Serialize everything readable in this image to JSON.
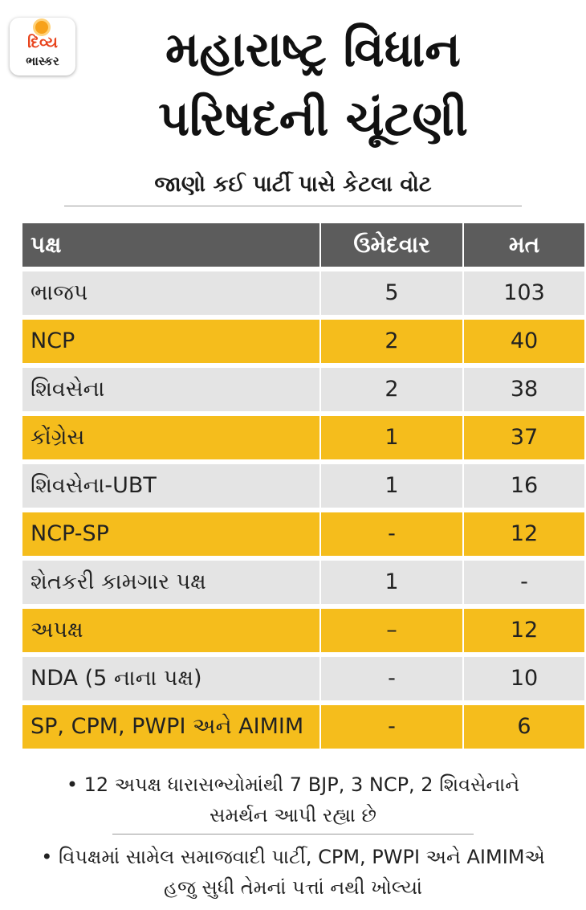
{
  "logo": {
    "line1": "દિવ્ય",
    "line2": "ભાસ્કર"
  },
  "header": {
    "title_line1": "મહારાષ્ટ્ર વિધાન",
    "title_line2": "પરિષદની ચૂંટણી",
    "subtitle": "જાણો કઈ પાર્ટી પાસે કેટલા વોટ"
  },
  "table": {
    "columns": [
      "પક્ષ",
      "ઉમેદવાર",
      "મત"
    ],
    "rows": [
      {
        "party": "ભાજપ",
        "candidates": "5",
        "votes": "103"
      },
      {
        "party": "NCP",
        "candidates": "2",
        "votes": "40"
      },
      {
        "party": "શિવસેના",
        "candidates": "2",
        "votes": "38"
      },
      {
        "party": "કોંગ્રેસ",
        "candidates": "1",
        "votes": "37"
      },
      {
        "party": "શિવસેના-UBT",
        "candidates": "1",
        "votes": "16"
      },
      {
        "party": "NCP-SP",
        "candidates": "-",
        "votes": "12"
      },
      {
        "party": "શેતકરી કામગાર પક્ષ",
        "candidates": "1",
        "votes": "-"
      },
      {
        "party": "અપક્ષ",
        "candidates": "–",
        "votes": "12"
      },
      {
        "party": "NDA (5 નાના પક્ષ)",
        "candidates": "-",
        "votes": "10"
      },
      {
        "party": "SP, CPM, PWPI અને AIMIM",
        "candidates": "-",
        "votes": "6"
      }
    ]
  },
  "notes": [
    {
      "line1": "• 12 અપક્ષ ધારાસભ્યોમાંથી 7 BJP, 3 NCP, 2 શિવસેનાને",
      "line2": "સમર્થન આપી રહ્યા છે"
    },
    {
      "line1": "• વિપક્ષમાં સામેલ સમાજવાદી પાર્ટી, CPM, PWPI અને AIMIMએ",
      "line2": "હજુ સુધી તેમનાં પત્તાં નથી ખોલ્યાં"
    }
  ],
  "colors": {
    "header_bg": "#5c5c5c",
    "row_grey": "#e4e4e4",
    "row_yellow": "#f5bd1c",
    "logo_red": "#e8431c",
    "logo_sun": "#f7a21b"
  }
}
